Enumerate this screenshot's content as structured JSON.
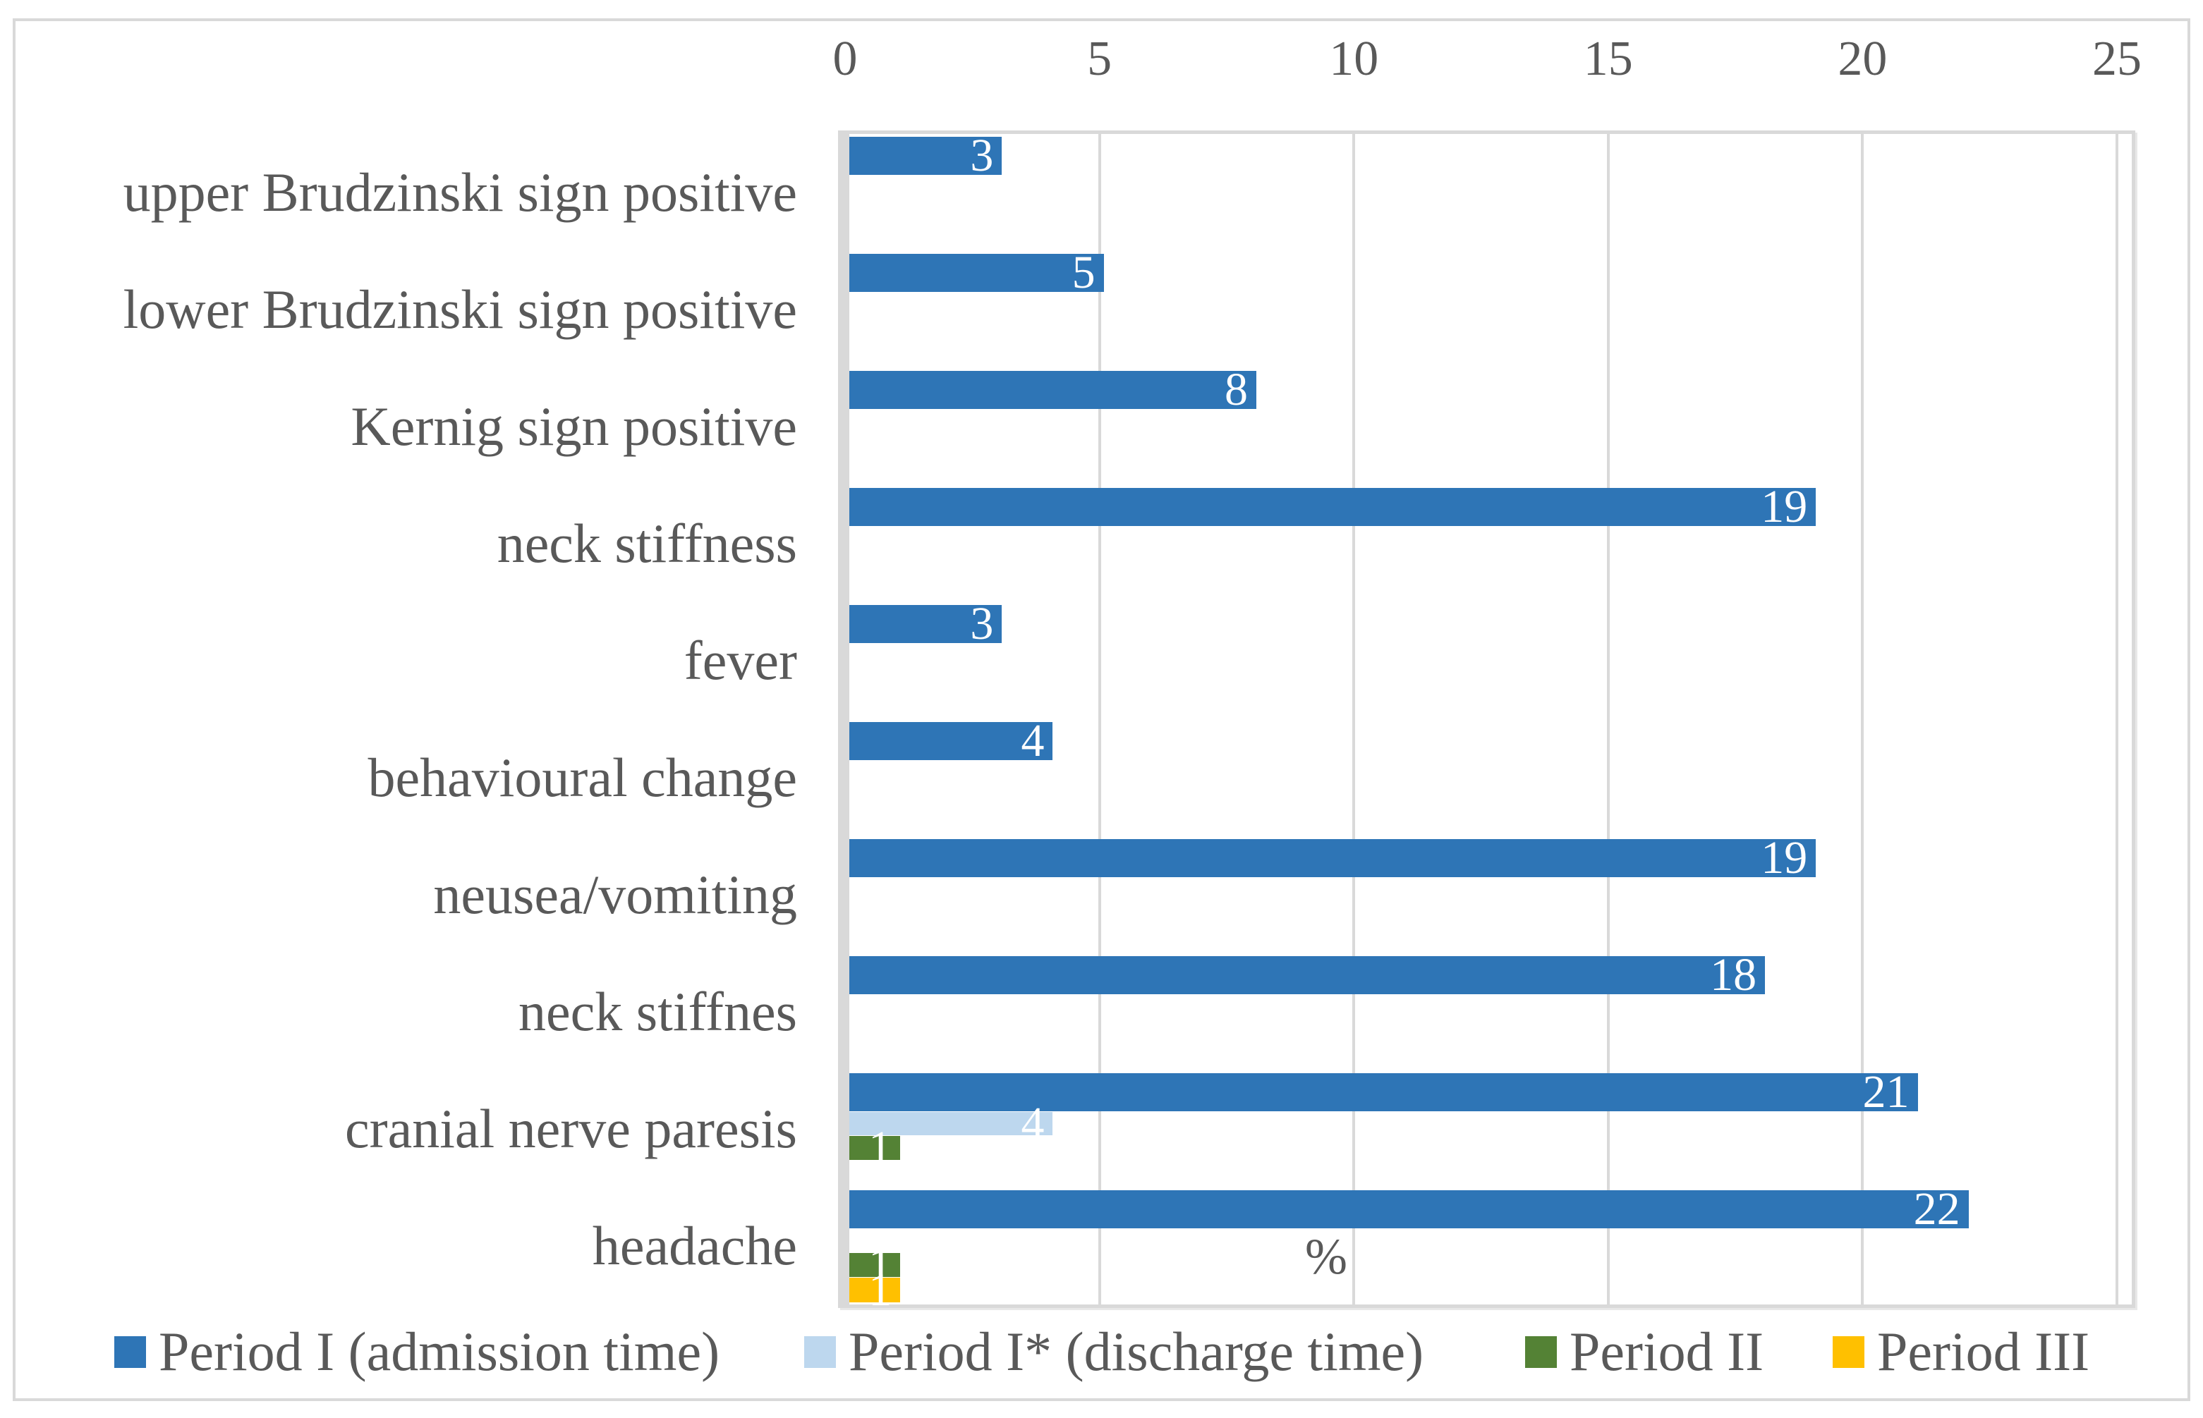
{
  "chart_data": {
    "type": "bar",
    "orientation": "horizontal",
    "title": "",
    "xlabel": "%",
    "ylabel": "",
    "xlim": [
      0,
      25
    ],
    "ticks": [
      0,
      5,
      10,
      15,
      20,
      25
    ],
    "grid": true,
    "legend_position": "bottom",
    "categories": [
      "upper Brudzinski sign positive",
      "lower Brudzinski sign positive",
      "Kernig sign positive",
      "neck stiffness",
      "fever",
      "behavioural change",
      "neusea/vomiting",
      "neck stiffnes",
      "cranial nerve paresis",
      "headache"
    ],
    "series": [
      {
        "name": "Period I (admission time)",
        "color": "#2E75B6",
        "values": [
          3,
          5,
          8,
          19,
          3,
          4,
          19,
          18,
          21,
          22
        ]
      },
      {
        "name": "Period I* (discharge time)",
        "color": "#BDD7EE",
        "values": [
          0,
          0,
          0,
          0,
          0,
          0,
          0,
          0,
          4,
          0
        ]
      },
      {
        "name": "Period II",
        "color": "#548235",
        "values": [
          0,
          0,
          0,
          0,
          0,
          0,
          0,
          0,
          1,
          1
        ]
      },
      {
        "name": "Period III",
        "color": "#FFC000",
        "values": [
          0,
          0,
          0,
          0,
          0,
          0,
          0,
          0,
          0,
          1
        ]
      }
    ],
    "data_labels": "inside-end, white"
  },
  "axis": {
    "percent_label": "%"
  },
  "colors": {
    "text": "#595959",
    "gridline": "#D9D9D9",
    "border": "#D9D9D9",
    "background": "#FFFFFF"
  }
}
